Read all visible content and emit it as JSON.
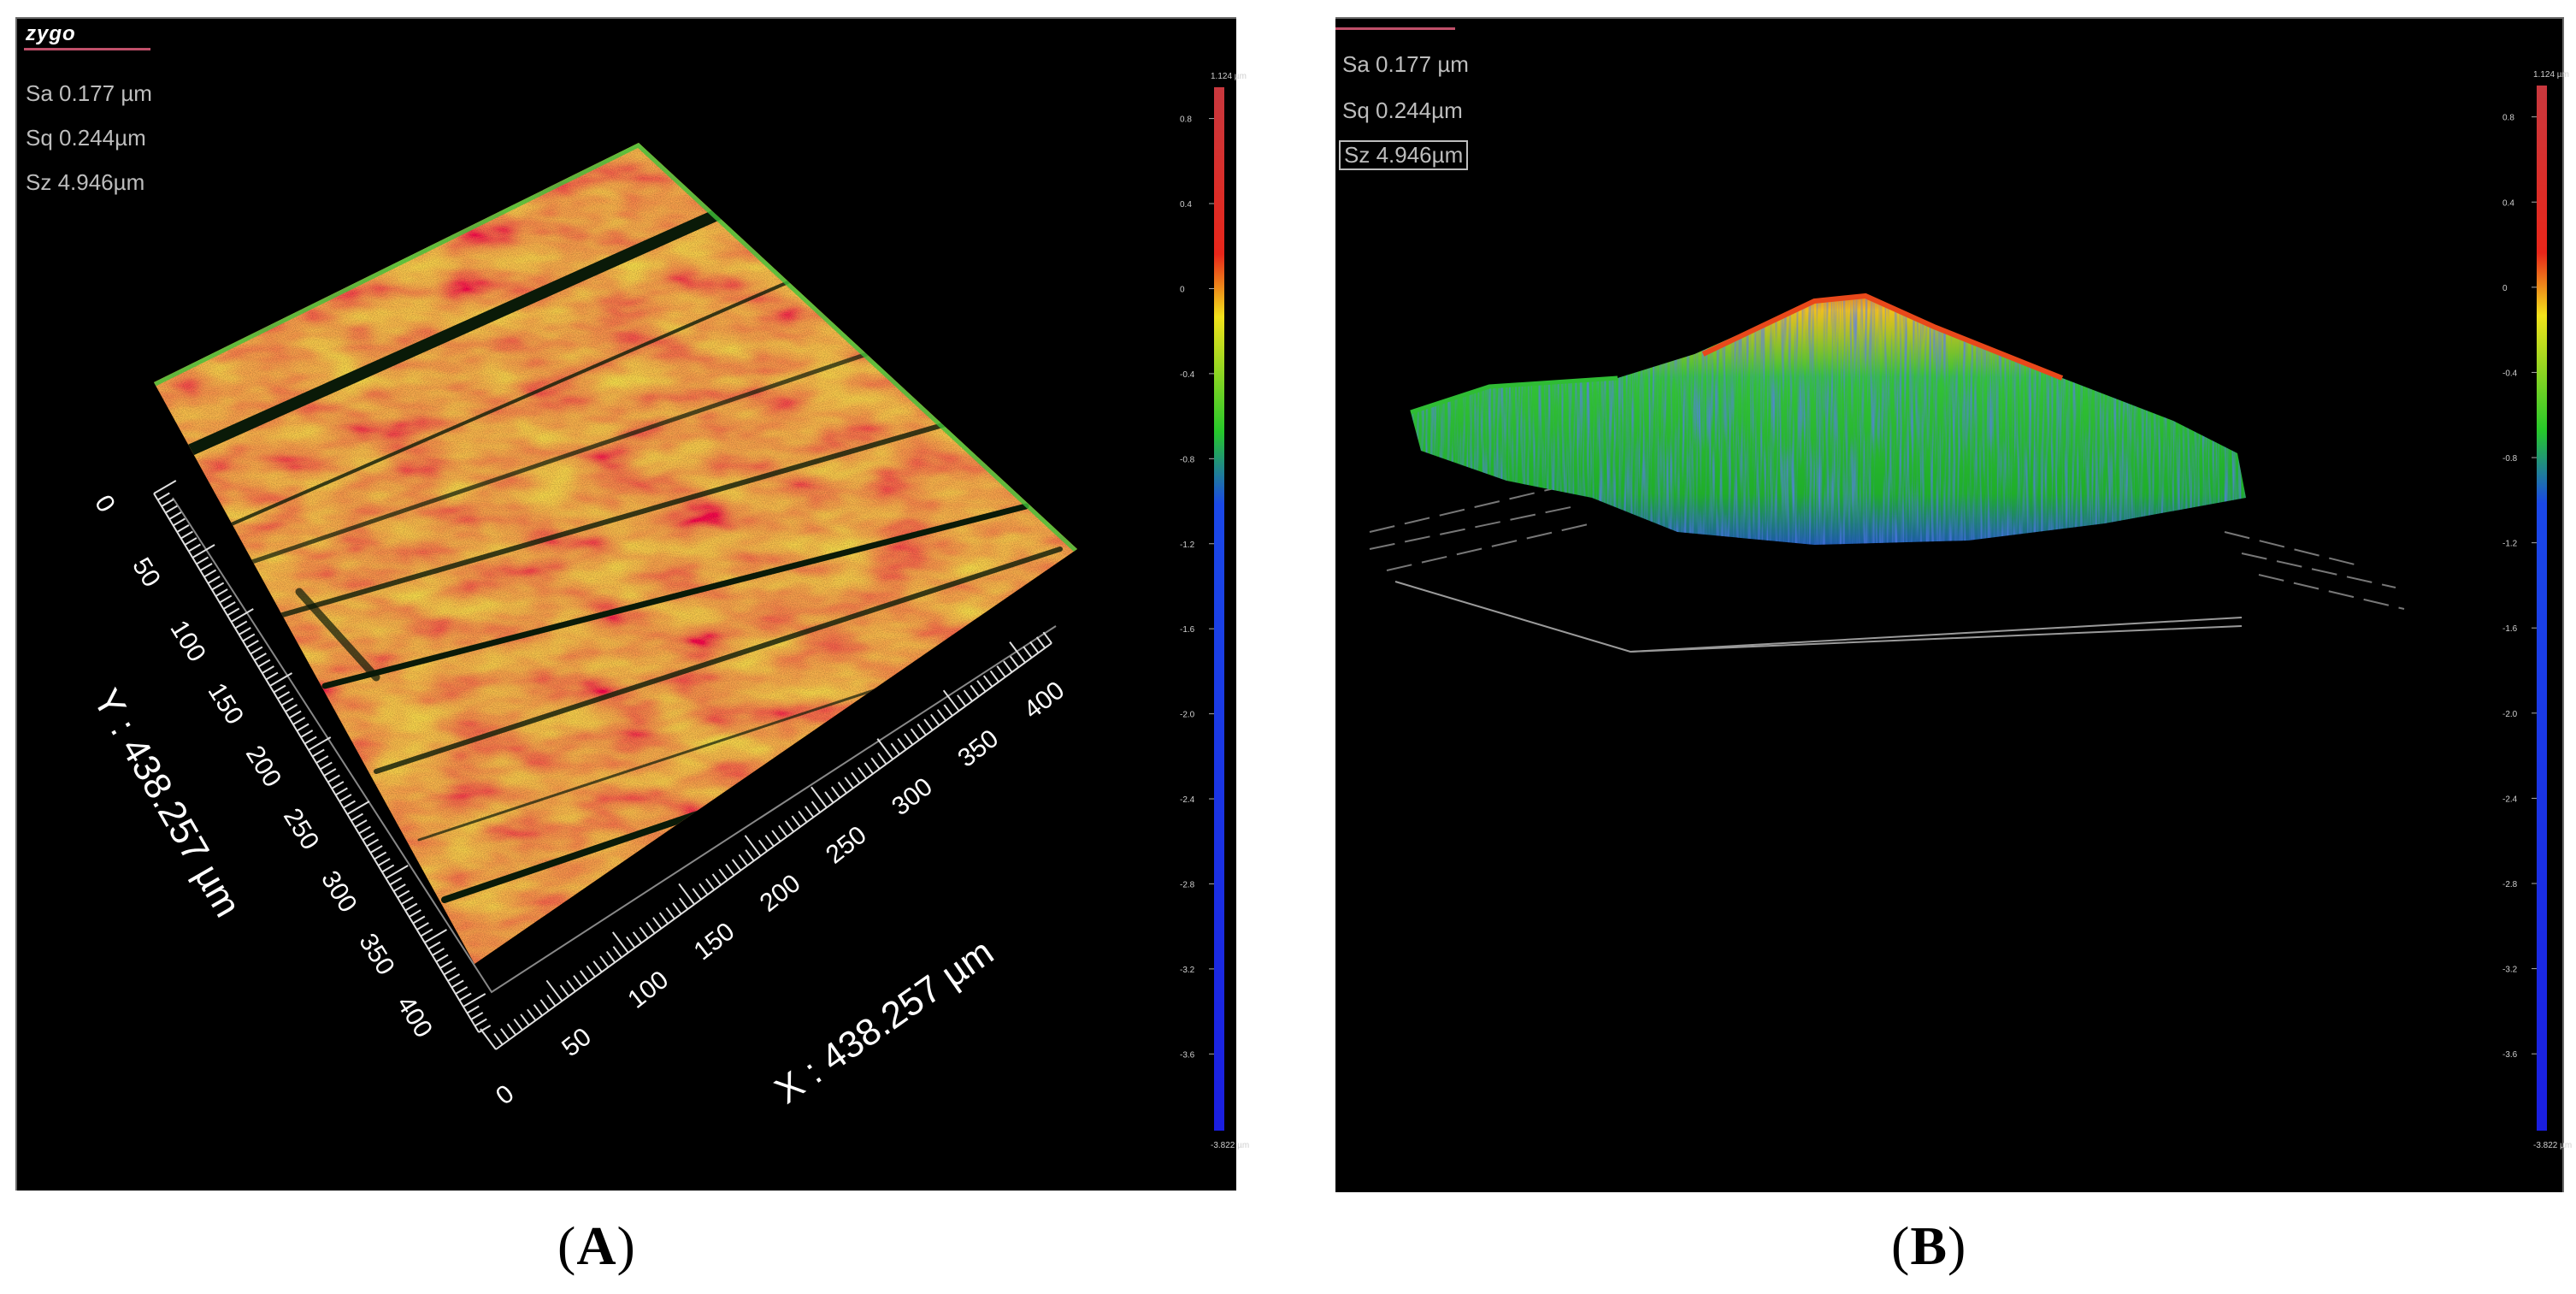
{
  "panel_a": {
    "caption_open": "(",
    "caption_letter": "A",
    "caption_close": ")",
    "logo": "zygo",
    "stats": {
      "sa": "Sa 0.177 µm",
      "sq": "Sq 0.244µm",
      "sz": "Sz 4.946µm"
    },
    "y_axis_label": "Y : 438.257 µm",
    "x_axis_label": "X : 438.257 µm",
    "y_ticks": [
      "0",
      "50",
      "100",
      "150",
      "200",
      "250",
      "300",
      "350",
      "400"
    ],
    "x_ticks": [
      "0",
      "50",
      "100",
      "150",
      "200",
      "250",
      "300",
      "350",
      "400"
    ],
    "colorbar": {
      "top_label": "1.124 µm",
      "bottom_label": "-3.822 µm",
      "ticks": [
        "0.8",
        "0.4",
        "0",
        "-0.4",
        "-0.8",
        "-1.2",
        "-1.6",
        "-2.0",
        "-2.4",
        "-2.8",
        "-3.2",
        "-3.6"
      ]
    }
  },
  "panel_b": {
    "caption_open": "(",
    "caption_letter": "B",
    "caption_close": ")",
    "stats": {
      "sa": "Sa 0.177 µm",
      "sq": "Sq 0.244µm",
      "sz": "Sz 4.946µm"
    },
    "colorbar": {
      "top_label": "1.124 µm",
      "bottom_label": "-3.822 µm",
      "ticks": [
        "0.8",
        "0.4",
        "0",
        "-0.4",
        "-0.8",
        "-1.2",
        "-1.6",
        "-2.0",
        "-2.4",
        "-2.8",
        "-3.2",
        "-3.6"
      ]
    }
  },
  "colors": {
    "background": "#000000",
    "surface_high": "#e53a1e",
    "surface_mid": "#e8d020",
    "surface_low": "#1fae2a",
    "surface_deep": "#1b36e0"
  }
}
